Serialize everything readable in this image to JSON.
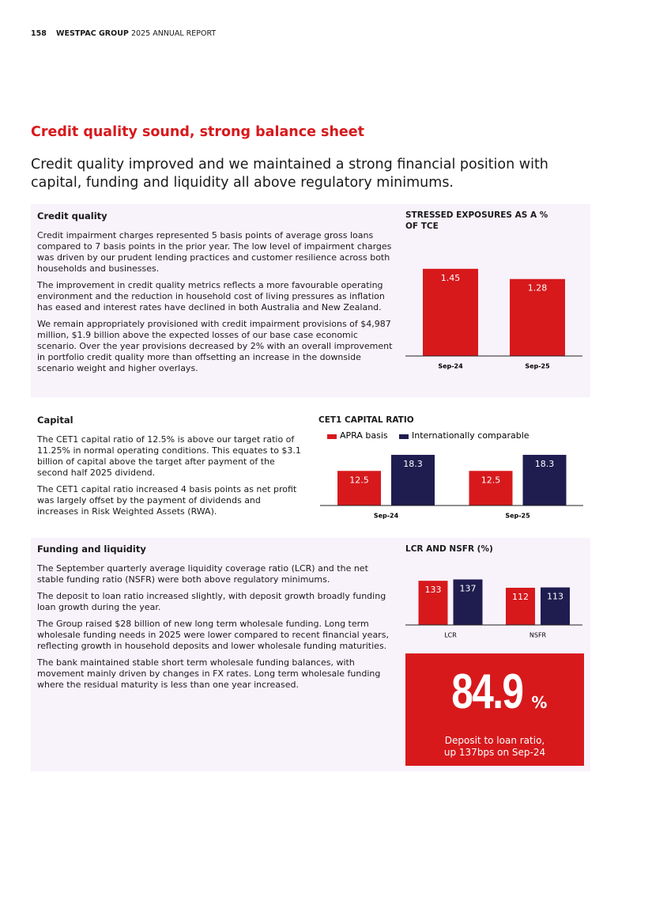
{
  "header": {
    "page_number": "158",
    "company": "WESTPAC GROUP",
    "report": "2025 ANNUAL REPORT"
  },
  "heading": "Credit quality sound, strong balance sheet",
  "intro": "Credit quality improved and we maintained a strong financial position with capital, funding and liquidity all above regulatory minimums.",
  "sections": [
    {
      "title": "Credit quality",
      "paragraphs": [
        "Credit impairment charges represented 5 basis points of average gross loans compared to 7 basis points in the prior year. The low level of impairment charges was driven by our prudent lending practices and customer resilience across both households and businesses.",
        "The improvement in credit quality metrics reflects a more favourable operating environment and the reduction in household cost of living pressures as inflation has eased and interest rates have declined in both Australia and New Zealand.",
        "We remain appropriately provisioned with credit impairment provisions of $4,987 million, $1.9 billion above the expected losses of our base case economic scenario. Over the year provisions decreased by 2% with an overall improvement in portfolio credit quality more than offsetting an increase in the downside scenario weight and higher overlays."
      ]
    },
    {
      "title": "Capital",
      "paragraphs": [
        "The CET1 capital ratio of 12.5% is above our target ratio of 11.25% in normal operating conditions. This equates to $3.1 billion of capital above the target after payment of the second half 2025 dividend.",
        "The CET1 capital ratio increased 4 basis points as net profit was largely offset by the payment of dividends and increases in Risk Weighted Assets (RWA)."
      ]
    },
    {
      "title": "Funding and liquidity",
      "paragraphs": [
        "The September quarterly average liquidity coverage ratio (LCR) and the net stable funding ratio (NSFR) were both above regulatory minimums.",
        "The deposit to loan ratio increased slightly, with deposit growth broadly funding loan growth during the year.",
        "The Group raised $28 billion of new long term wholesale funding. Long term wholesale funding needs in 2025 were lower compared to recent financial years, reflecting growth in household deposits and lower wholesale funding maturities.",
        "The bank maintained stable short term wholesale funding balances, with movement mainly driven by changes in FX rates. Long term wholesale funding where the residual maturity is less than one year increased."
      ]
    }
  ],
  "chart_data": [
    {
      "type": "bar",
      "title": "STRESSED EXPOSURES AS A % OF TCE",
      "categories": [
        "Sep-24",
        "Sep-25"
      ],
      "values": [
        1.45,
        1.28
      ],
      "color": "#d7191c"
    },
    {
      "type": "bar",
      "title": "CET1 CAPITAL RATIO",
      "categories": [
        "Sep-24",
        "Sep-25"
      ],
      "series": [
        {
          "name": "APRA basis",
          "color": "#d7191c",
          "values": [
            12.5,
            12.5
          ]
        },
        {
          "name": "Internationally comparable",
          "color": "#1f1c4f",
          "values": [
            18.3,
            18.3
          ]
        }
      ]
    },
    {
      "type": "bar",
      "title": "LCR AND NSFR (%)",
      "categories": [
        "LCR",
        "NSFR"
      ],
      "series": [
        {
          "color": "#d7191c",
          "values": [
            133,
            112
          ]
        },
        {
          "color": "#1f1c4f",
          "values": [
            137,
            113
          ]
        }
      ]
    }
  ],
  "callout": {
    "value": "84.9",
    "unit": "%",
    "caption": "Deposit to loan ratio, up 137bps on Sep-24"
  }
}
